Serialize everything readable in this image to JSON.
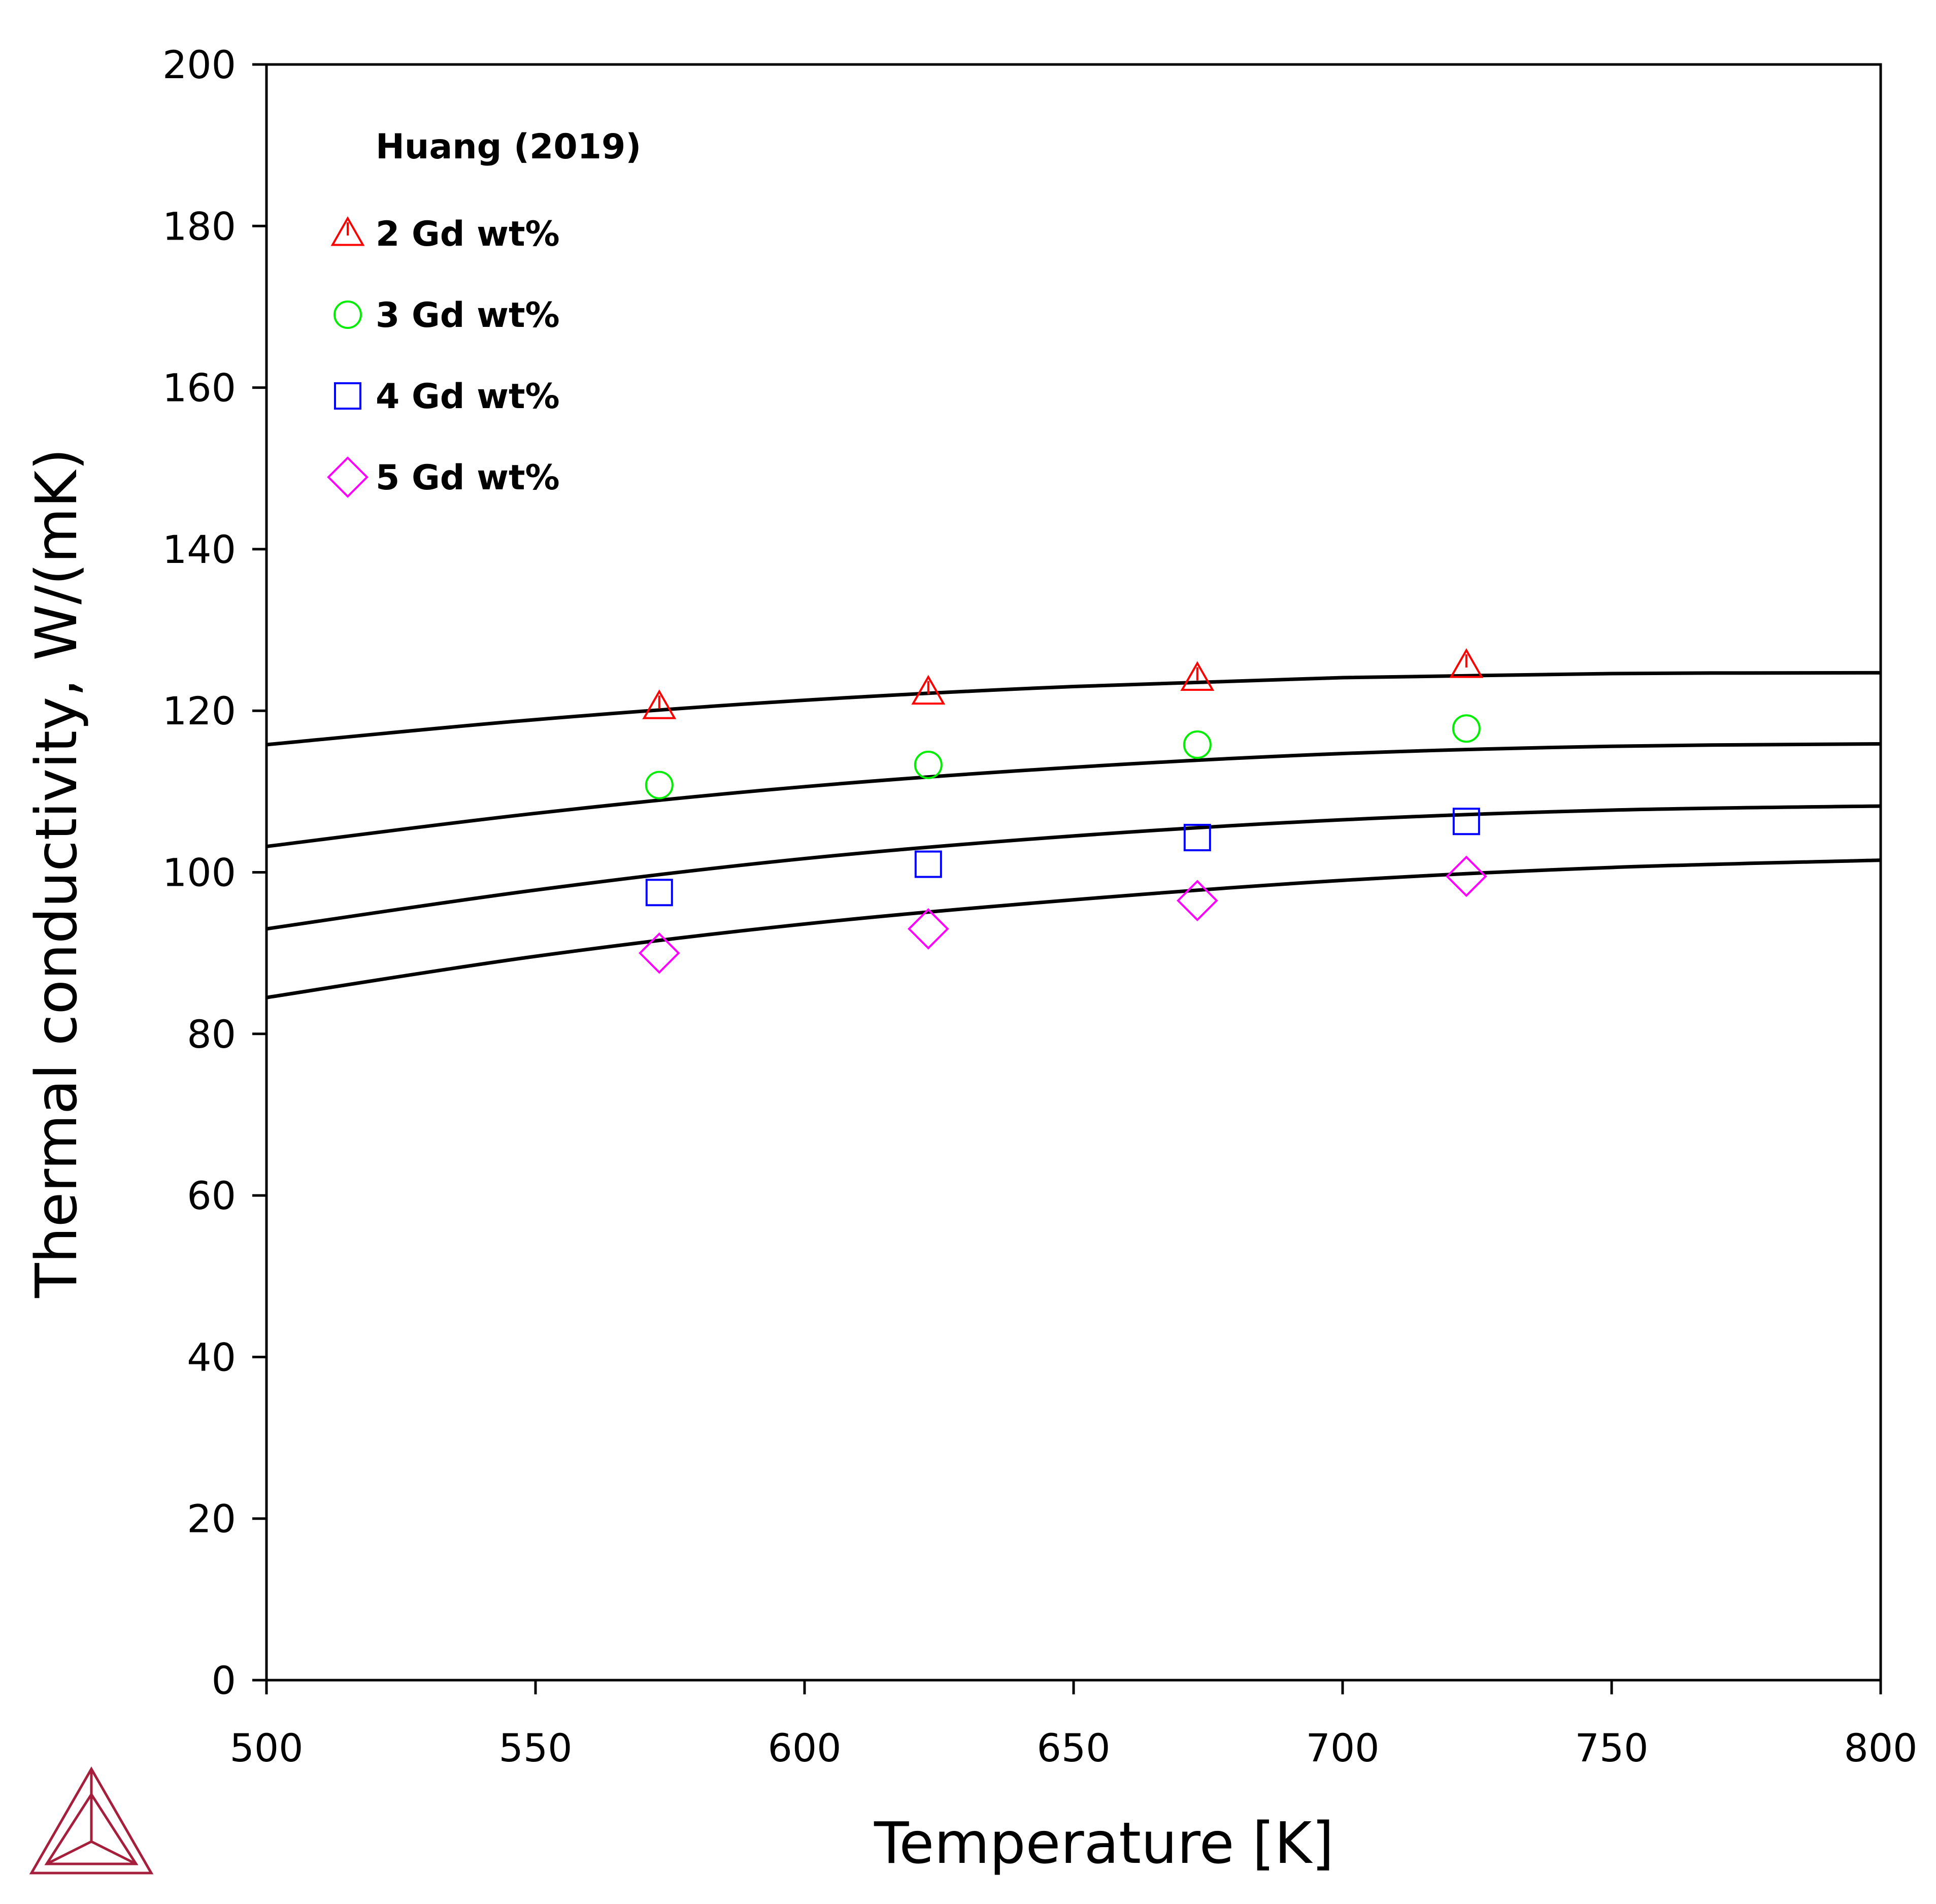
{
  "chart_data": {
    "type": "scatter",
    "xlabel": "Temperature [K]",
    "ylabel": "Thermal conductivity, W/(mK)",
    "xlim": [
      500,
      800
    ],
    "ylim": [
      0,
      200
    ],
    "x_ticks": [
      "500",
      "550",
      "600",
      "650",
      "700",
      "750",
      "800"
    ],
    "y_ticks": [
      "0",
      "20",
      "40",
      "60",
      "80",
      "100",
      "120",
      "140",
      "160",
      "180",
      "200"
    ],
    "grid": false,
    "legend": {
      "title": "Huang (2019)",
      "placement": "top-left"
    },
    "series": [
      {
        "name": "2 Gd wt%",
        "marker": "triangle",
        "color": "#ff0000",
        "points": [
          [
            573,
            120.5
          ],
          [
            623,
            122.3
          ],
          [
            673,
            124.0
          ],
          [
            723,
            125.6
          ]
        ]
      },
      {
        "name": "3 Gd wt%",
        "marker": "circle",
        "color": "#00ee00",
        "points": [
          [
            573,
            110.8
          ],
          [
            623,
            113.3
          ],
          [
            673,
            115.8
          ],
          [
            723,
            117.8
          ]
        ]
      },
      {
        "name": "4 Gd wt%",
        "marker": "square",
        "color": "#0000ff",
        "points": [
          [
            573,
            97.5
          ],
          [
            623,
            101.0
          ],
          [
            673,
            104.3
          ],
          [
            723,
            106.3
          ]
        ]
      },
      {
        "name": "5 Gd wt%",
        "marker": "diamond",
        "color": "#ff00ff",
        "points": [
          [
            573,
            90.0
          ],
          [
            623,
            93.0
          ],
          [
            673,
            96.5
          ],
          [
            723,
            99.5
          ]
        ]
      }
    ],
    "curves": [
      {
        "color": "#000000",
        "points": [
          [
            500,
            115.8
          ],
          [
            550,
            118.9
          ],
          [
            600,
            121.3
          ],
          [
            650,
            123.0
          ],
          [
            700,
            124.1
          ],
          [
            750,
            124.6
          ],
          [
            800,
            124.7
          ]
        ]
      },
      {
        "color": "#000000",
        "points": [
          [
            500,
            103.2
          ],
          [
            550,
            107.3
          ],
          [
            600,
            110.6
          ],
          [
            650,
            113.0
          ],
          [
            700,
            114.7
          ],
          [
            750,
            115.6
          ],
          [
            800,
            115.9
          ]
        ]
      },
      {
        "color": "#000000",
        "points": [
          [
            500,
            93.0
          ],
          [
            550,
            97.8
          ],
          [
            600,
            101.7
          ],
          [
            650,
            104.5
          ],
          [
            700,
            106.5
          ],
          [
            750,
            107.7
          ],
          [
            800,
            108.2
          ]
        ]
      },
      {
        "color": "#000000",
        "points": [
          [
            500,
            84.5
          ],
          [
            550,
            89.6
          ],
          [
            600,
            93.6
          ],
          [
            650,
            96.6
          ],
          [
            700,
            99.0
          ],
          [
            750,
            100.6
          ],
          [
            800,
            101.5
          ]
        ]
      }
    ]
  },
  "logo": {
    "name": "thermo-calc-logo-icon",
    "color": "#a51f3c"
  }
}
